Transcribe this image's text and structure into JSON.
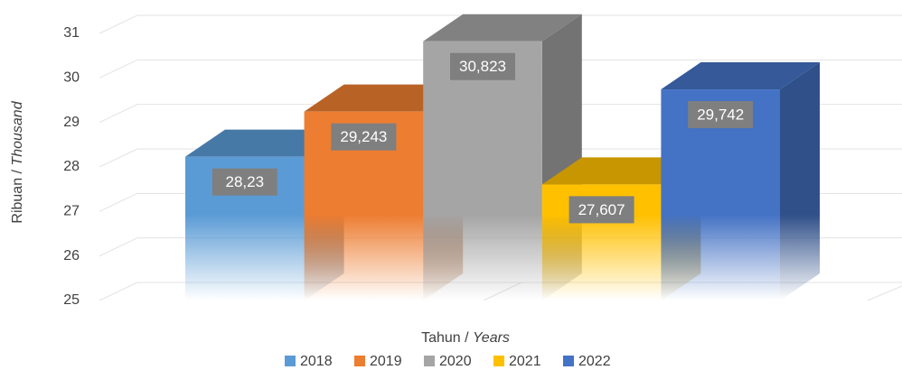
{
  "chart_data": {
    "type": "bar3d",
    "categories": [
      "2018",
      "2019",
      "2020",
      "2021",
      "2022"
    ],
    "values": [
      28.23,
      29.243,
      30.823,
      27.607,
      29.742
    ],
    "value_labels": [
      "28,23",
      "29,243",
      "30,823",
      "27,607",
      "29,742"
    ],
    "colors": [
      "#5b9bd5",
      "#ed7d31",
      "#a5a5a5",
      "#ffc000",
      "#4472c4"
    ],
    "ylim": [
      25,
      31
    ],
    "yticks": [
      25,
      26,
      27,
      28,
      29,
      30,
      31
    ],
    "grid": true,
    "ylabel": {
      "main": "Ribuan /",
      "italic": "Thousand"
    },
    "xlabel": {
      "main": "Tahun /",
      "italic": "Years"
    },
    "legend": "bottom"
  }
}
